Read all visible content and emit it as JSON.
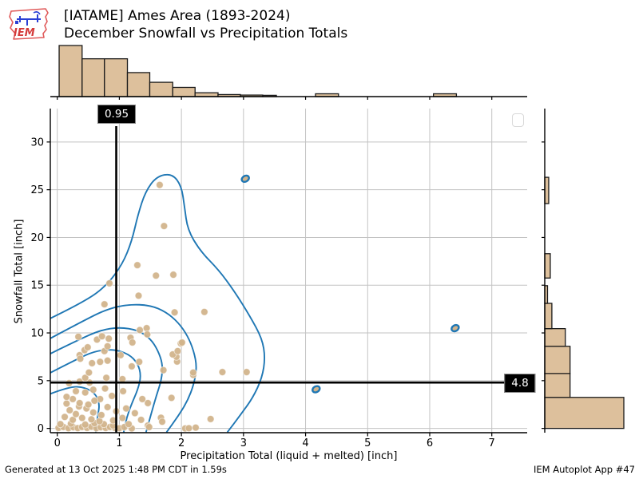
{
  "header": {
    "title_line1": "[IATAME] Ames Area (1893-2024)",
    "title_line2": "December Snowfall vs Precipitation Totals",
    "logo_text": "IEM"
  },
  "footer": {
    "generated": "Generated at 13 Oct 2025 1:48 PM CDT in 1.59s",
    "app": "IEM Autoplot App #47"
  },
  "chart_data": {
    "type": "scatter",
    "title": "[IATAME] Ames Area (1893-2024) December Snowfall vs Precipitation Totals",
    "xlabel": "Precipitation Total (liquid + melted) [inch]",
    "ylabel": "Snowfall Total [inch]",
    "xlim": [
      -0.112,
      7.57
    ],
    "ylim": [
      -0.45,
      33.5
    ],
    "xticks": [
      0,
      1,
      2,
      3,
      4,
      5,
      6,
      7
    ],
    "yticks": [
      0,
      5,
      10,
      15,
      20,
      25,
      30
    ],
    "grid": true,
    "legend_position": "upper right (empty)",
    "crosshair": {
      "x": 0.95,
      "y": 4.8,
      "x_label": "0.95",
      "y_label": "4.8"
    },
    "points": [
      [
        0.02,
        0.05
      ],
      [
        0.1,
        0.15
      ],
      [
        0.18,
        0.02
      ],
      [
        0.26,
        0.12
      ],
      [
        0.33,
        0.03
      ],
      [
        0.4,
        0.15
      ],
      [
        0.48,
        0.05
      ],
      [
        0.55,
        0.18
      ],
      [
        0.63,
        0.02
      ],
      [
        0.7,
        0.12
      ],
      [
        0.78,
        0.04
      ],
      [
        0.85,
        0.15
      ],
      [
        0.93,
        0.05
      ],
      [
        1.0,
        0.02
      ],
      [
        1.08,
        0.14
      ],
      [
        1.2,
        0.0
      ],
      [
        1.46,
        0.3
      ],
      [
        1.48,
        0.14
      ],
      [
        2.06,
        0.0
      ],
      [
        2.12,
        0.02
      ],
      [
        2.23,
        0.08
      ],
      [
        0.05,
        0.45
      ],
      [
        0.22,
        0.5
      ],
      [
        0.45,
        0.4
      ],
      [
        0.6,
        0.55
      ],
      [
        0.75,
        0.45
      ],
      [
        0.9,
        0.3
      ],
      [
        1.15,
        0.45
      ],
      [
        0.12,
        1.2
      ],
      [
        0.25,
        0.9
      ],
      [
        0.4,
        1.1
      ],
      [
        0.55,
        0.95
      ],
      [
        0.68,
        0.75
      ],
      [
        0.9,
        0.84
      ],
      [
        1.05,
        1.1
      ],
      [
        1.35,
        0.9
      ],
      [
        1.67,
        1.12
      ],
      [
        1.69,
        0.7
      ],
      [
        2.47,
        0.98
      ],
      [
        0.2,
        1.9
      ],
      [
        0.3,
        1.5
      ],
      [
        0.47,
        2.09
      ],
      [
        0.58,
        1.67
      ],
      [
        0.71,
        1.4
      ],
      [
        0.81,
        2.23
      ],
      [
        0.95,
        1.8
      ],
      [
        1.11,
        2.09
      ],
      [
        1.25,
        1.6
      ],
      [
        0.15,
        2.6
      ],
      [
        0.35,
        2.3
      ],
      [
        0.5,
        2.5
      ],
      [
        0.36,
        2.65
      ],
      [
        0.25,
        3.07
      ],
      [
        0.69,
        3.07
      ],
      [
        0.6,
        2.9
      ],
      [
        1.46,
        2.65
      ],
      [
        1.37,
        3.07
      ],
      [
        0.15,
        3.3
      ],
      [
        0.3,
        3.9
      ],
      [
        0.45,
        3.76
      ],
      [
        0.58,
        4.05
      ],
      [
        0.77,
        4.18
      ],
      [
        0.88,
        3.4
      ],
      [
        1.06,
        3.9
      ],
      [
        1.84,
        3.2
      ],
      [
        0.19,
        4.74
      ],
      [
        0.36,
        4.9
      ],
      [
        0.52,
        4.8
      ],
      [
        2.19,
        5.6
      ],
      [
        0.45,
        5.3
      ],
      [
        0.51,
        5.85
      ],
      [
        0.79,
        5.3
      ],
      [
        1.05,
        5.16
      ],
      [
        1.71,
        6.1
      ],
      [
        2.19,
        5.85
      ],
      [
        2.66,
        5.9
      ],
      [
        3.05,
        5.9
      ],
      [
        1.2,
        6.5
      ],
      [
        0.56,
        6.83
      ],
      [
        0.69,
        6.97
      ],
      [
        0.81,
        7.1
      ],
      [
        1.02,
        7.67
      ],
      [
        1.32,
        6.97
      ],
      [
        0.36,
        7.67
      ],
      [
        0.37,
        7.3
      ],
      [
        1.93,
        7.0
      ],
      [
        1.92,
        7.5
      ],
      [
        1.86,
        7.75
      ],
      [
        1.94,
        8.1
      ],
      [
        0.44,
        8.2
      ],
      [
        0.49,
        8.5
      ],
      [
        0.76,
        8.1
      ],
      [
        0.81,
        8.6
      ],
      [
        1.99,
        8.9
      ],
      [
        2.01,
        9.0
      ],
      [
        0.34,
        9.6
      ],
      [
        0.64,
        9.3
      ],
      [
        0.72,
        9.65
      ],
      [
        0.83,
        9.4
      ],
      [
        1.18,
        9.5
      ],
      [
        1.21,
        9.0
      ],
      [
        1.33,
        10.3
      ],
      [
        1.44,
        10.5
      ],
      [
        1.45,
        9.85
      ],
      [
        0.76,
        13.0
      ],
      [
        0.84,
        15.2
      ],
      [
        1.29,
        17.1
      ],
      [
        1.31,
        13.9
      ],
      [
        1.59,
        16.0
      ],
      [
        1.87,
        16.1
      ],
      [
        1.89,
        12.15
      ],
      [
        2.37,
        12.2
      ],
      [
        1.65,
        25.5
      ],
      [
        1.72,
        21.2
      ]
    ],
    "highlighted_points": [
      [
        3.03,
        26.15
      ],
      [
        6.41,
        10.5
      ],
      [
        4.17,
        4.1
      ]
    ],
    "contour_levels": [
      [
        [
          -0.12,
          11.5
        ],
        [
          0.45,
          13.3
        ],
        [
          0.8,
          15.0
        ],
        [
          1.05,
          17.2
        ],
        [
          1.2,
          19.6
        ],
        [
          1.3,
          22.4
        ],
        [
          1.42,
          24.8
        ],
        [
          1.6,
          26.4
        ],
        [
          1.85,
          26.7
        ],
        [
          2.0,
          25.4
        ],
        [
          2.05,
          23.2
        ],
        [
          2.1,
          20.8
        ],
        [
          2.3,
          18.6
        ],
        [
          2.6,
          16.6
        ],
        [
          2.85,
          14.4
        ],
        [
          3.1,
          11.8
        ],
        [
          3.3,
          9.4
        ],
        [
          3.35,
          7.4
        ],
        [
          3.3,
          5.3
        ],
        [
          3.15,
          3.2
        ],
        [
          2.95,
          1.4
        ],
        [
          2.74,
          -0.4
        ]
      ],
      [
        [
          -0.12,
          9.4
        ],
        [
          0.4,
          11.2
        ],
        [
          0.8,
          12.5
        ],
        [
          1.15,
          13.0
        ],
        [
          1.5,
          12.9
        ],
        [
          1.75,
          12.2
        ],
        [
          1.95,
          11.1
        ],
        [
          2.1,
          9.7
        ],
        [
          2.2,
          8.1
        ],
        [
          2.25,
          6.4
        ],
        [
          2.2,
          4.6
        ],
        [
          2.1,
          2.9
        ],
        [
          1.95,
          1.3
        ],
        [
          1.76,
          -0.4
        ]
      ],
      [
        [
          -0.12,
          7.8
        ],
        [
          0.35,
          9.3
        ],
        [
          0.7,
          10.3
        ],
        [
          1.0,
          10.6
        ],
        [
          1.3,
          10.3
        ],
        [
          1.5,
          9.4
        ],
        [
          1.62,
          8.2
        ],
        [
          1.7,
          6.7
        ],
        [
          1.68,
          5.1
        ],
        [
          1.6,
          3.5
        ],
        [
          1.52,
          1.7
        ],
        [
          1.43,
          -0.4
        ]
      ],
      [
        [
          -0.12,
          5.8
        ],
        [
          0.3,
          7.2
        ],
        [
          0.6,
          8.1
        ],
        [
          0.9,
          8.3
        ],
        [
          1.15,
          7.8
        ],
        [
          1.3,
          6.8
        ],
        [
          1.35,
          5.5
        ],
        [
          1.3,
          4.1
        ],
        [
          1.2,
          2.6
        ],
        [
          1.12,
          1.2
        ],
        [
          1.07,
          -0.4
        ]
      ],
      [
        [
          -0.12,
          3.6
        ],
        [
          0.2,
          4.4
        ],
        [
          0.45,
          4.3
        ],
        [
          0.62,
          3.6
        ],
        [
          0.68,
          2.6
        ],
        [
          0.66,
          1.5
        ],
        [
          0.63,
          0.6
        ],
        [
          0.62,
          -0.4
        ]
      ]
    ],
    "top_histogram": {
      "orientation": "vertical",
      "units": "relative height (0-1 of max bar)",
      "bins": [
        {
          "x0": 0.03,
          "x1": 0.4,
          "h": 1.0
        },
        {
          "x0": 0.4,
          "x1": 0.76,
          "h": 0.74
        },
        {
          "x0": 0.76,
          "x1": 1.13,
          "h": 0.74
        },
        {
          "x0": 1.13,
          "x1": 1.49,
          "h": 0.47
        },
        {
          "x0": 1.49,
          "x1": 1.86,
          "h": 0.28
        },
        {
          "x0": 1.86,
          "x1": 2.22,
          "h": 0.18
        },
        {
          "x0": 2.22,
          "x1": 2.59,
          "h": 0.075
        },
        {
          "x0": 2.59,
          "x1": 2.95,
          "h": 0.04
        },
        {
          "x0": 2.95,
          "x1": 3.31,
          "h": 0.03
        },
        {
          "x0": 3.31,
          "x1": 3.53,
          "h": 0.025
        },
        {
          "x0": 4.16,
          "x1": 4.53,
          "h": 0.055
        },
        {
          "x0": 6.06,
          "x1": 6.43,
          "h": 0.055
        }
      ]
    },
    "right_histogram": {
      "orientation": "horizontal",
      "units": "relative length (0-1 of max bar)",
      "bins": [
        {
          "y0": 0.0,
          "y1": 3.25,
          "w": 1.0
        },
        {
          "y0": 3.25,
          "y1": 5.75,
          "w": 0.32
        },
        {
          "y0": 5.75,
          "y1": 8.6,
          "w": 0.32
        },
        {
          "y0": 8.6,
          "y1": 10.45,
          "w": 0.26
        },
        {
          "y0": 10.45,
          "y1": 13.1,
          "w": 0.09
        },
        {
          "y0": 13.1,
          "y1": 14.95,
          "w": 0.035
        },
        {
          "y0": 15.75,
          "y1": 18.3,
          "w": 0.07
        },
        {
          "y0": 23.55,
          "y1": 26.3,
          "w": 0.05
        }
      ]
    },
    "colors": {
      "point_fill": "#d2b48c",
      "bar_fill": "#ddc09c",
      "bar_edge": "#1a1a1a",
      "contour": "#1f77b4",
      "grid": "#c3c3c3",
      "spine": "#000000",
      "crosshair": "#000000",
      "crosshair_bg": "#000000",
      "crosshair_text": "#ffffff"
    }
  }
}
